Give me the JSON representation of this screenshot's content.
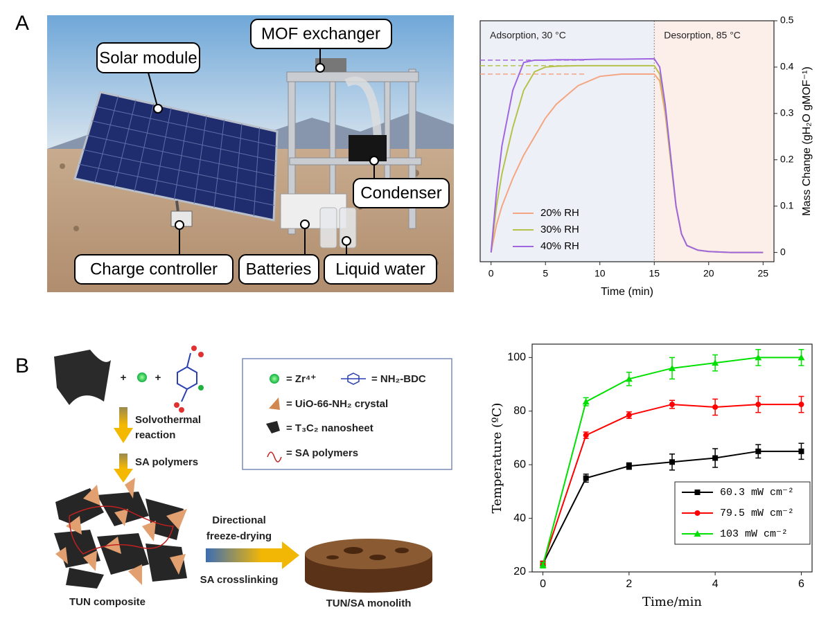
{
  "panel_labels": [
    "A",
    "B"
  ],
  "photo": {
    "labels": [
      "Solar module",
      "MOF exchanger",
      "Condenser",
      "Charge controller",
      "Batteries",
      "Liquid water"
    ]
  },
  "schematic": {
    "plus": [
      "+",
      "+"
    ],
    "steps": [
      [
        "Solvothermal",
        "reaction"
      ],
      [
        "SA polymers"
      ]
    ],
    "arrow_top": [
      "Directional",
      "freeze-drying"
    ],
    "arrow_bottom": "SA crosslinking",
    "captions": [
      "TUN composite",
      "TUN/SA monolith"
    ],
    "legend": [
      "= Zr⁴⁺",
      "= NH₂-BDC",
      "= UiO-66-NH₂ crystal",
      "= T₃C₂ nanosheet",
      "= SA polymers"
    ]
  },
  "chart_data": [
    {
      "type": "line",
      "x_label": "Time (min)",
      "y_label": "Mass Change (gH₂O gMOF⁻¹)",
      "y_axis_side": "right",
      "regions": [
        {
          "label": "Adsorption, 30 °C",
          "from": -1,
          "to": 15,
          "color": "#eef0f7"
        },
        {
          "label": "Desorption, 85 °C",
          "from": 15,
          "to": 26,
          "color": "#fcefea"
        }
      ],
      "xlim": [
        -1,
        26
      ],
      "ylim": [
        -0.02,
        0.5
      ],
      "xticks": [
        0,
        5,
        10,
        15,
        20,
        25
      ],
      "yticks": [
        0,
        0.1,
        0.2,
        0.3,
        0.4,
        0.5
      ],
      "x": [
        0,
        0.5,
        1,
        2,
        3,
        4,
        5,
        6,
        8,
        10,
        12,
        15,
        15.5,
        16,
        16.5,
        17,
        17.5,
        18,
        19,
        20,
        22,
        25
      ],
      "series": [
        {
          "name": "20% RH",
          "color": "#f4a582",
          "dashed_level": 0.385,
          "values": [
            0,
            0.06,
            0.1,
            0.16,
            0.21,
            0.25,
            0.29,
            0.32,
            0.36,
            0.38,
            0.385,
            0.385,
            0.37,
            0.3,
            0.2,
            0.1,
            0.04,
            0.015,
            0.005,
            0.002,
            0,
            0
          ]
        },
        {
          "name": "30% RH",
          "color": "#b5c24a",
          "dashed_level": 0.403,
          "values": [
            0,
            0.1,
            0.17,
            0.27,
            0.35,
            0.39,
            0.4,
            0.402,
            0.403,
            0.403,
            0.403,
            0.403,
            0.385,
            0.31,
            0.2,
            0.1,
            0.04,
            0.015,
            0.005,
            0.002,
            0,
            0
          ]
        },
        {
          "name": "40% RH",
          "color": "#a066e0",
          "dashed_level": 0.415,
          "values": [
            0,
            0.13,
            0.23,
            0.35,
            0.41,
            0.415,
            0.415,
            0.416,
            0.416,
            0.417,
            0.417,
            0.418,
            0.4,
            0.32,
            0.21,
            0.1,
            0.04,
            0.015,
            0.005,
            0.002,
            0,
            0
          ]
        }
      ],
      "legend": "lower center"
    },
    {
      "type": "line",
      "x_label": "Time/min",
      "y_label": "Temperature (ºC)",
      "xlim": [
        -0.25,
        6.25
      ],
      "ylim": [
        20,
        105
      ],
      "xticks": [
        0,
        2,
        4,
        6
      ],
      "yticks": [
        20,
        40,
        60,
        80,
        100
      ],
      "x": [
        0,
        1,
        2,
        3,
        4,
        5,
        6
      ],
      "series": [
        {
          "name": "60.3 mW cm⁻²",
          "color": "#000000",
          "marker": "square",
          "values": [
            23,
            55,
            59.5,
            61,
            62.5,
            65,
            65
          ],
          "errors": [
            1,
            1.5,
            1.2,
            3,
            3.5,
            2.5,
            3
          ]
        },
        {
          "name": "79.5 mW cm⁻²",
          "color": "#ff0000",
          "marker": "circle",
          "values": [
            23,
            71,
            78.5,
            82.5,
            81.5,
            82.5,
            82.5
          ],
          "errors": [
            1,
            1.2,
            1.2,
            1.5,
            3,
            3,
            3
          ]
        },
        {
          "name": "103 mW cm⁻²",
          "color": "#00e000",
          "marker": "triangle",
          "values": [
            22.5,
            83.5,
            92,
            96,
            98,
            100,
            100
          ],
          "errors": [
            1,
            1.5,
            2.5,
            4,
            3,
            3,
            3
          ]
        }
      ],
      "legend": "lower right"
    }
  ]
}
